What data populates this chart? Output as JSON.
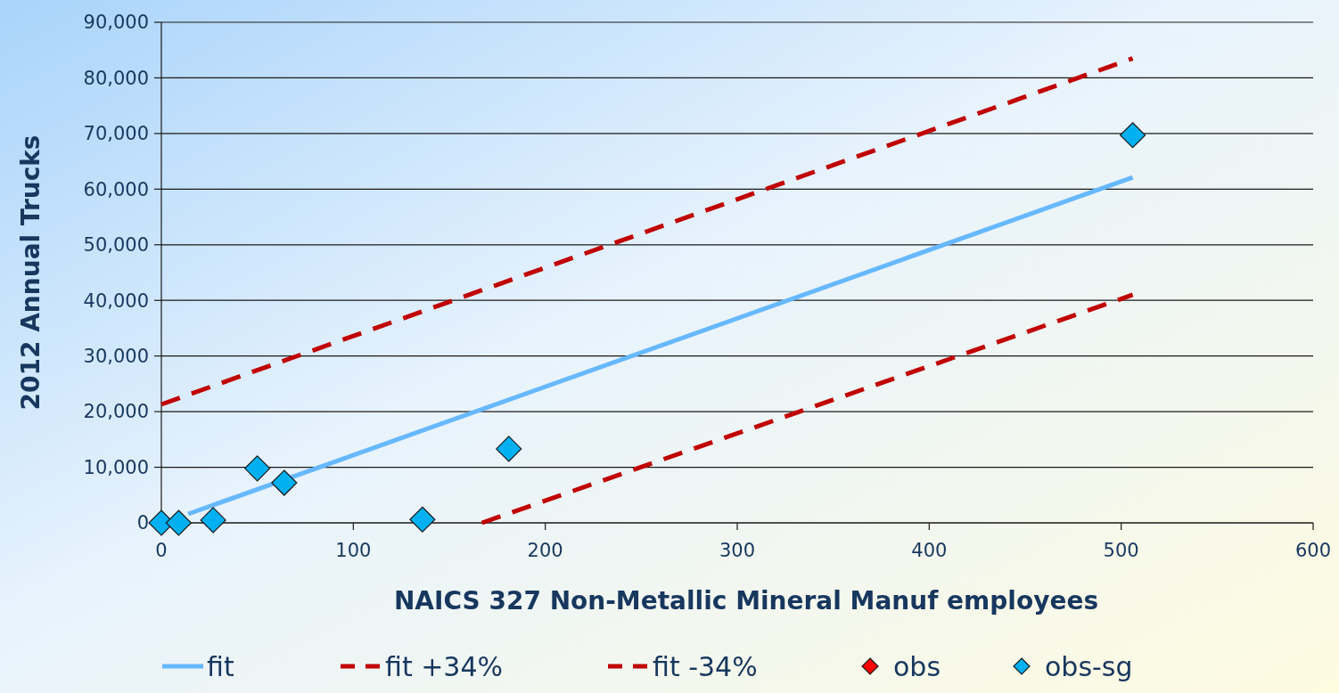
{
  "chart_data": {
    "type": "scatter",
    "xlabel": "NAICS 327 Non-Metallic Mineral Manuf  employees",
    "ylabel": "2012 Annual Trucks",
    "xlim": [
      0,
      600
    ],
    "xticks": [
      0,
      100,
      200,
      300,
      400,
      500,
      600
    ],
    "ylim": [
      0,
      90000
    ],
    "yticks": [
      {
        "value": 0,
        "label": "0"
      },
      {
        "value": 10000,
        "label": "10,000"
      },
      {
        "value": 20000,
        "label": "20,000"
      },
      {
        "value": 30000,
        "label": "30,000"
      },
      {
        "value": 40000,
        "label": "40,000"
      },
      {
        "value": 50000,
        "label": "50,000"
      },
      {
        "value": 60000,
        "label": "60,000"
      },
      {
        "value": 70000,
        "label": "70,000"
      },
      {
        "value": 80000,
        "label": "80,000"
      },
      {
        "value": 90000,
        "label": "90,000"
      }
    ],
    "grid": "y",
    "legend": "bottom",
    "series": [
      {
        "name": "fit",
        "type": "line",
        "color": "#66b8ff",
        "line_style": "solid",
        "marker": "none",
        "x": [
          14,
          506
        ],
        "values": [
          1600,
          62100
        ]
      },
      {
        "name": "fit +34%",
        "type": "line",
        "color": "#c00000",
        "line_style": "dashed",
        "marker": "none",
        "x": [
          0,
          506
        ],
        "values": [
          21300,
          83500
        ]
      },
      {
        "name": "fit -34%",
        "type": "line",
        "color": "#c00000",
        "line_style": "dashed",
        "marker": "none",
        "x": [
          167,
          506
        ],
        "values": [
          0,
          41000
        ]
      },
      {
        "name": "obs",
        "color": "#ff0000",
        "marker": "diamond"
      },
      {
        "name": "obs-sg",
        "color": "#00b0f0",
        "marker": "diamond",
        "x": [
          0,
          9,
          27,
          50,
          64,
          136,
          181,
          506
        ],
        "values": [
          0,
          0,
          500,
          9800,
          7200,
          600,
          13300,
          69700
        ]
      }
    ]
  }
}
